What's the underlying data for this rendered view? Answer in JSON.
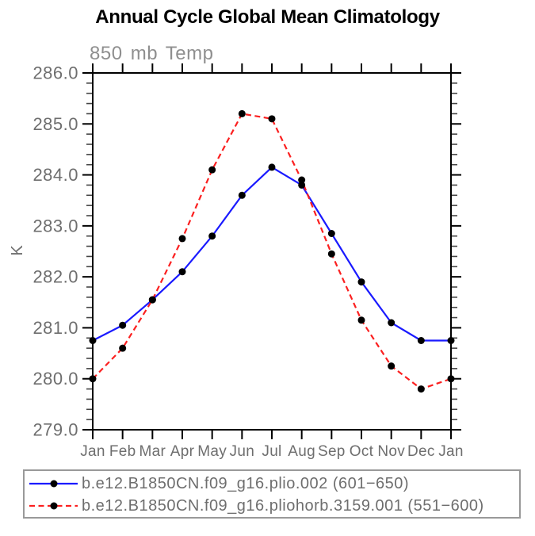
{
  "title": "Annual Cycle Global Mean Climatology",
  "colors": {
    "series1_line": "#1a1aff",
    "series2_line": "#fb2020",
    "marker": "#000000",
    "axis": "#000000",
    "minor_tick": "#444444",
    "label_gray": "#6e6e6e",
    "subtitle_gray": "#8f8f8f",
    "legend_border": "#999999",
    "background": "#ffffff"
  },
  "chart_data": {
    "type": "line",
    "title": "Annual Cycle Global Mean Climatology",
    "subtitle": "850 mb Temp",
    "xlabel": "",
    "ylabel": "K",
    "categories": [
      "Jan",
      "Feb",
      "Mar",
      "Apr",
      "May",
      "Jun",
      "Jul",
      "Aug",
      "Sep",
      "Oct",
      "Nov",
      "Dec",
      "Jan"
    ],
    "series": [
      {
        "name": "b.e12.B1850CN.f09_g16.plio.002 (601−650)",
        "color": "#1a1aff",
        "style": "solid",
        "marker": "filled-circle",
        "values": [
          280.75,
          281.05,
          281.55,
          282.1,
          282.8,
          283.6,
          284.15,
          283.8,
          282.85,
          281.9,
          281.1,
          280.75,
          280.75
        ]
      },
      {
        "name": "b.e12.B1850CN.f09_g16.pliohorb.3159.001 (551−600)",
        "color": "#fb2020",
        "style": "dashed",
        "marker": "filled-circle",
        "values": [
          280.0,
          280.6,
          281.55,
          282.75,
          284.1,
          285.2,
          285.1,
          283.9,
          282.45,
          281.15,
          280.25,
          279.8,
          280.0
        ]
      }
    ],
    "ylim": [
      279.0,
      286.0
    ],
    "ytick_major": 1.0,
    "ytick_minor": 0.2,
    "ytick_labels": [
      "279.0",
      "280.0",
      "281.0",
      "282.0",
      "283.0",
      "284.0",
      "285.0",
      "286.0"
    ],
    "grid": false,
    "legend_position": "bottom-box"
  }
}
